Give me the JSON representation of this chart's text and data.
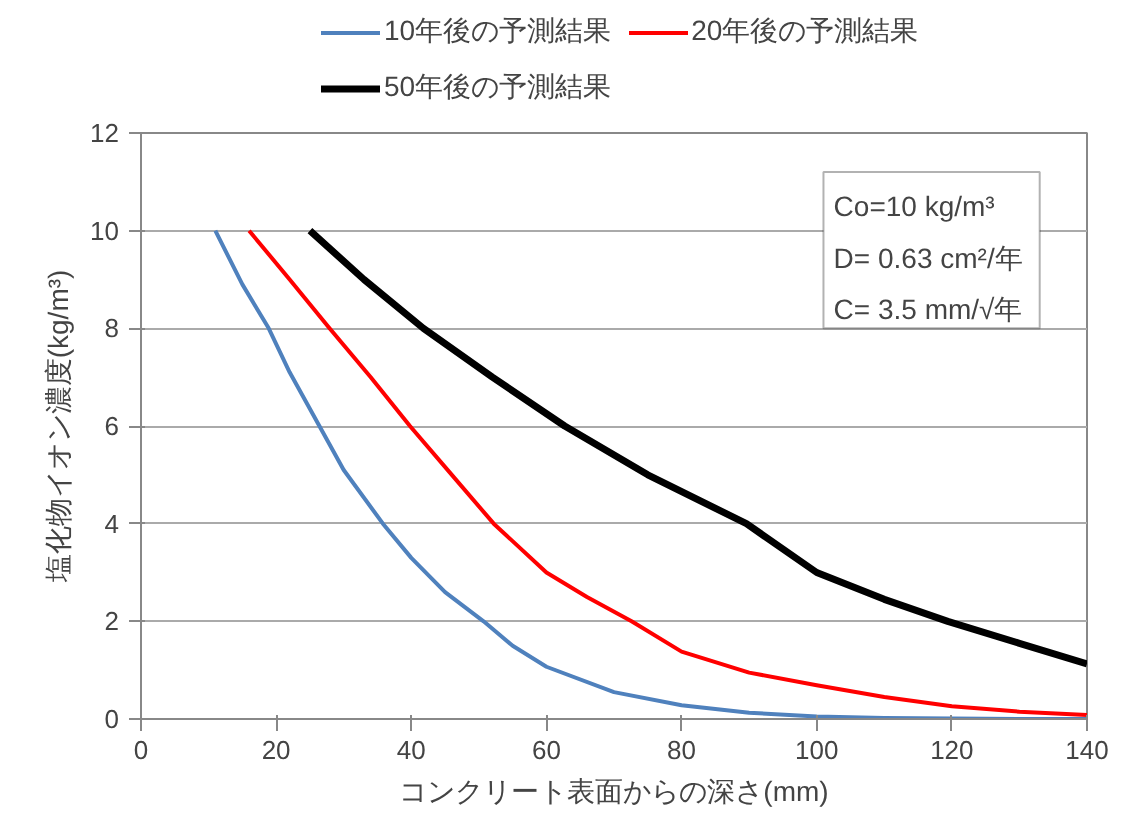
{
  "chart_data": {
    "type": "line",
    "xlabel": "コンクリート表面からの深さ(mm)",
    "ylabel": "塩化物イオン濃度(kg/m³)",
    "xlim": [
      0,
      140
    ],
    "ylim": [
      0,
      12
    ],
    "xticks": [
      0,
      20,
      40,
      60,
      80,
      100,
      120,
      140
    ],
    "yticks": [
      0,
      2,
      4,
      6,
      8,
      10,
      12
    ],
    "grid": "y",
    "legend": "top",
    "line_style": "solid",
    "annotations": [
      "Co=10 kg/m³",
      "D= 0.63 cm²/年",
      "C= 3.5 mm/√年"
    ],
    "series": [
      {
        "name": "10年後の予測結果",
        "color": "#4f81bd",
        "x": [
          11,
          15,
          18.9,
          22,
          26.4,
          30,
          35.8,
          40,
          45,
          50.7,
          55,
          60,
          70,
          80,
          90,
          100,
          110,
          120,
          130,
          140
        ],
        "values": [
          10,
          8.9,
          8,
          7.1,
          6,
          5.1,
          4,
          3.3,
          2.6,
          2,
          1.5,
          1.07,
          0.55,
          0.28,
          0.13,
          0.05,
          0.02,
          0.01,
          0.0,
          0.0
        ]
      },
      {
        "name": "20年後の予測結果",
        "color": "#ff0000",
        "x": [
          16,
          22,
          27.9,
          34,
          39.8,
          46,
          52.2,
          60,
          66,
          72.6,
          80,
          90,
          100,
          110,
          120,
          130,
          140
        ],
        "values": [
          10,
          9,
          8,
          7,
          6,
          5,
          4,
          3,
          2.5,
          2,
          1.38,
          0.95,
          0.69,
          0.45,
          0.26,
          0.15,
          0.08
        ]
      },
      {
        "name": "50年後の予測結果",
        "color": "#000000",
        "x": [
          25,
          33,
          41.8,
          52,
          62.7,
          75,
          89.6,
          100,
          110,
          119.4,
          130,
          140
        ],
        "values": [
          10,
          9,
          8,
          7,
          6,
          5,
          4,
          3,
          2.45,
          2,
          1.55,
          1.13
        ]
      }
    ]
  }
}
